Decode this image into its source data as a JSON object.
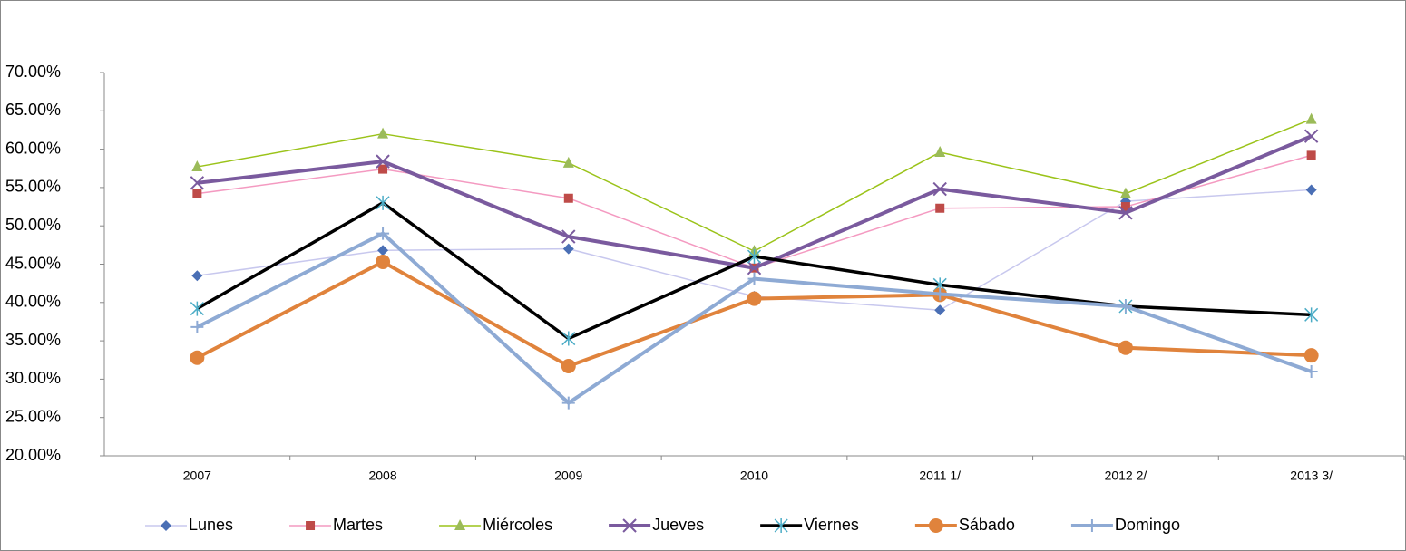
{
  "chart_data": {
    "type": "line",
    "categories": [
      "2007",
      "2008",
      "2009",
      "2010",
      "2011 1/",
      "2012 2/",
      "2013 3/"
    ],
    "ylim": [
      20,
      70
    ],
    "yticks": [
      {
        "value": 20,
        "label": "20.00%"
      },
      {
        "value": 25,
        "label": "25.00%"
      },
      {
        "value": 30,
        "label": "30.00%"
      },
      {
        "value": 35,
        "label": "35.00%"
      },
      {
        "value": 40,
        "label": "40.00%"
      },
      {
        "value": 45,
        "label": "45.00%"
      },
      {
        "value": 50,
        "label": "50.00%"
      },
      {
        "value": 55,
        "label": "55.00%"
      },
      {
        "value": 60,
        "label": "60.00%"
      },
      {
        "value": 65,
        "label": "65.00%"
      },
      {
        "value": 70,
        "label": "70.00%"
      }
    ],
    "legend": "bottom",
    "series": [
      {
        "name": "Lunes",
        "color": "#c8c8ee",
        "marker_color": "#4a6fb5",
        "marker": "diamond",
        "width": 1.5,
        "values": [
          43.5,
          46.8,
          47.0,
          40.8,
          39.0,
          53.2,
          54.7
        ]
      },
      {
        "name": "Martes",
        "color": "#f49ac1",
        "marker_color": "#be4b48",
        "marker": "square",
        "width": 1.5,
        "values": [
          54.2,
          57.4,
          53.6,
          44.5,
          52.3,
          52.5,
          59.2
        ]
      },
      {
        "name": "Miércoles",
        "color": "#9bc31a",
        "marker_color": "#9bbb59",
        "marker": "triangle",
        "width": 1.5,
        "values": [
          57.7,
          62.0,
          58.2,
          46.7,
          59.6,
          54.2,
          63.9
        ]
      },
      {
        "name": "Jueves",
        "color": "#7a5a9e",
        "marker_color": "#7a5a9e",
        "marker": "x",
        "width": 4,
        "values": [
          55.6,
          58.4,
          48.6,
          44.5,
          54.8,
          51.7,
          61.7
        ]
      },
      {
        "name": "Viernes",
        "color": "#000000",
        "marker_color": "#4bacc6",
        "marker": "asterisk",
        "width": 3.5,
        "values": [
          39.2,
          53.0,
          35.3,
          46.0,
          42.3,
          39.5,
          38.4
        ]
      },
      {
        "name": "Sábado",
        "color": "#e0833c",
        "marker_color": "#e0833c",
        "marker": "circle",
        "width": 4,
        "values": [
          32.8,
          45.3,
          31.7,
          40.5,
          41.0,
          34.1,
          33.1
        ]
      },
      {
        "name": "Domingo",
        "color": "#8eaad4",
        "marker_color": "#8eaad4",
        "marker": "plus",
        "width": 4,
        "values": [
          36.8,
          49.0,
          26.9,
          43.1,
          41.1,
          39.5,
          31.0
        ]
      }
    ]
  }
}
